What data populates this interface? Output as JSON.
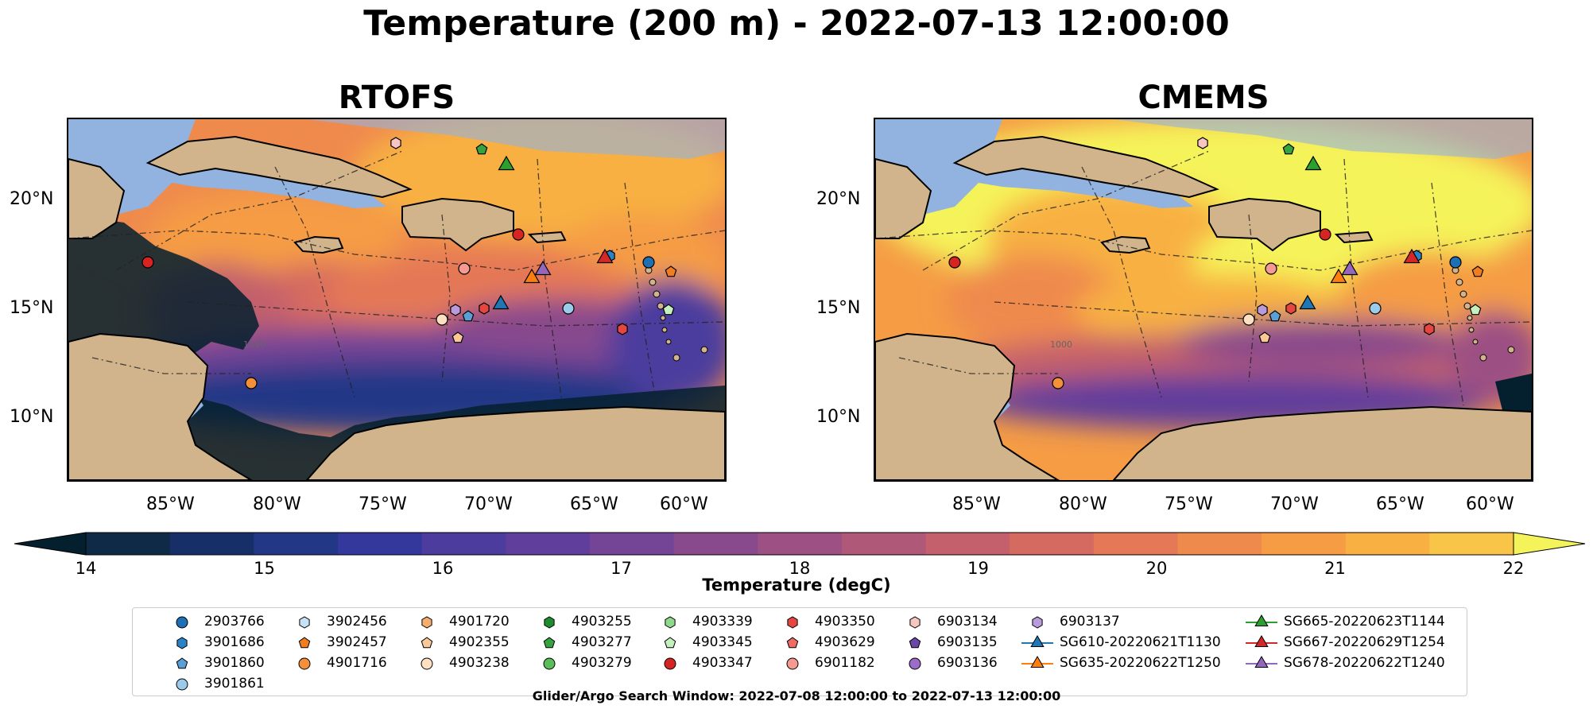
{
  "title": "Temperature (200 m) - 2022-07-13 12:00:00",
  "panels": [
    {
      "title": "RTOFS"
    },
    {
      "title": "CMEMS"
    }
  ],
  "lon_ticks": [
    "85°W",
    "80°W",
    "75°W",
    "70°W",
    "65°W",
    "60°W"
  ],
  "lat_ticks": [
    "20°N",
    "15°N",
    "10°N"
  ],
  "colorbar": {
    "label": "Temperature (degC)",
    "ticks": [
      "14",
      "15",
      "16",
      "17",
      "18",
      "19",
      "20",
      "21",
      "22"
    ],
    "min": 14,
    "max": 22,
    "step": 0.5,
    "colors": [
      "#0e2a47",
      "#172f68",
      "#233787",
      "#34389c",
      "#4b3c9e",
      "#603e9b",
      "#744496",
      "#884a8c",
      "#9c5083",
      "#b05878",
      "#c3606c",
      "#d56a61",
      "#e47857",
      "#ef8a4d",
      "#f59c45",
      "#f8b043",
      "#f9c548"
    ],
    "under_color": "#04202e",
    "over_color": "#f5f35a"
  },
  "depth_labels": [
    "1000",
    "1000"
  ],
  "legend": {
    "items": [
      {
        "label": "2903766",
        "marker": "circle",
        "color": "#1f6fb4"
      },
      {
        "label": "3901686",
        "marker": "hexagon",
        "color": "#2a83c7"
      },
      {
        "label": "3901860",
        "marker": "pentagon",
        "color": "#5aa0d6"
      },
      {
        "label": "3901861",
        "marker": "circle",
        "color": "#9bcbea"
      },
      {
        "label": "3902456",
        "marker": "hexagon",
        "color": "#c6e3f5"
      },
      {
        "label": "3902457",
        "marker": "pentagon",
        "color": "#f07e20"
      },
      {
        "label": "4901716",
        "marker": "circle",
        "color": "#f5903a"
      },
      {
        "label": "4901720",
        "marker": "hexagon",
        "color": "#f7ad6b"
      },
      {
        "label": "4902355",
        "marker": "pentagon",
        "color": "#fbc898"
      },
      {
        "label": "4903238",
        "marker": "circle",
        "color": "#fde0c2"
      },
      {
        "label": "4903255",
        "marker": "hexagon",
        "color": "#1e8c2c"
      },
      {
        "label": "4903277",
        "marker": "pentagon",
        "color": "#35a43e"
      },
      {
        "label": "4903279",
        "marker": "circle",
        "color": "#5bbd58"
      },
      {
        "label": "4903339",
        "marker": "hexagon",
        "color": "#8fd98a"
      },
      {
        "label": "4903345",
        "marker": "pentagon",
        "color": "#c4f0bd"
      },
      {
        "label": "4903347",
        "marker": "circle",
        "color": "#d62422"
      },
      {
        "label": "4903350",
        "marker": "hexagon",
        "color": "#e5463f"
      },
      {
        "label": "4903629",
        "marker": "pentagon",
        "color": "#ef6b64"
      },
      {
        "label": "6901182",
        "marker": "circle",
        "color": "#f49a93"
      },
      {
        "label": "6903134",
        "marker": "hexagon",
        "color": "#f8c6c1"
      },
      {
        "label": "6903135",
        "marker": "pentagon",
        "color": "#6b47a8"
      },
      {
        "label": "6903136",
        "marker": "circle",
        "color": "#9b6cc8"
      },
      {
        "label": "6903137",
        "marker": "hexagon",
        "color": "#b99adb"
      },
      {
        "label": "SG610-20220621T1130",
        "marker": "triangle-line",
        "color": "#1f77b4"
      },
      {
        "label": "SG635-20220622T1250",
        "marker": "triangle-line",
        "color": "#ff7f0e"
      },
      {
        "label": "SG665-20220623T1144",
        "marker": "triangle-line",
        "color": "#2ca02c"
      },
      {
        "label": "SG667-20220629T1254",
        "marker": "triangle-line",
        "color": "#d62728"
      },
      {
        "label": "SG678-20220622T1240",
        "marker": "triangle-line",
        "color": "#9467bd"
      }
    ]
  },
  "search_window": "Glider/Argo Search Window: 2022-07-08 12:00:00 to 2022-07-13 12:00:00",
  "colors": {
    "land": "#d2b48c",
    "shelf": "#92b2df",
    "coast": "#000000",
    "river": "#9fb6d3"
  }
}
